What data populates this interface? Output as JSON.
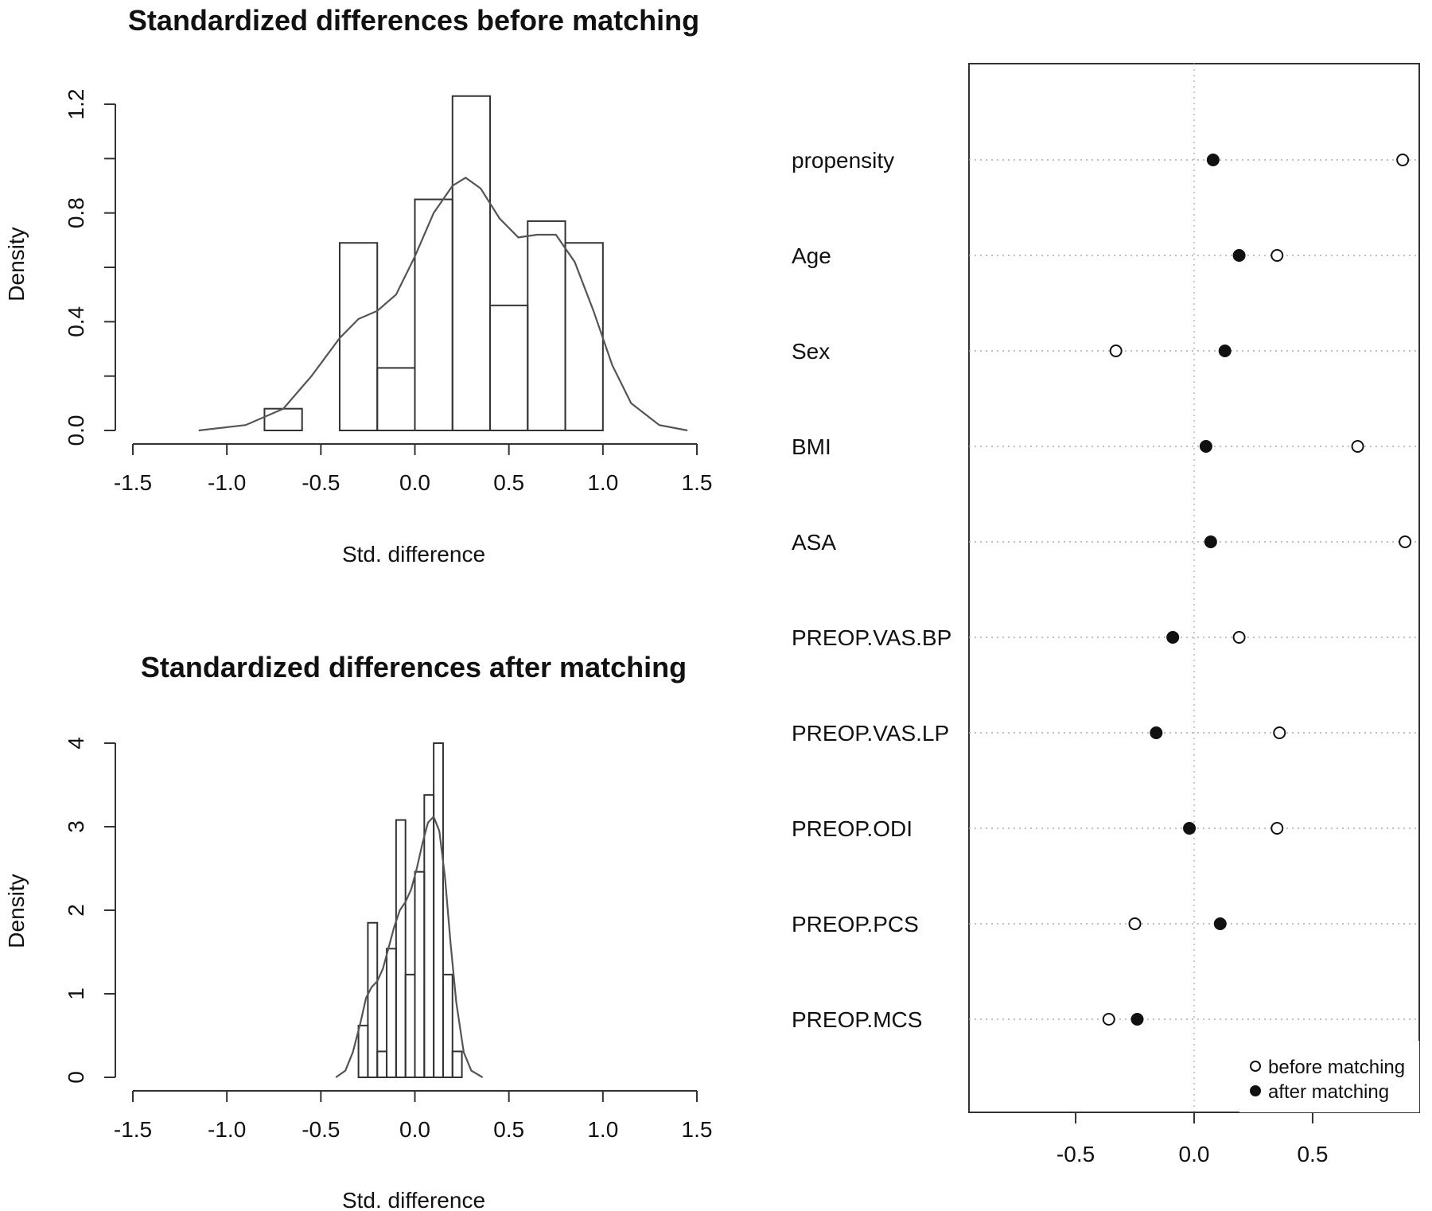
{
  "chart_data": [
    {
      "type": "histogram",
      "title": "Standardized differences before matching",
      "xlabel": "Std. difference",
      "ylabel": "Density",
      "xlim": [
        -1.5,
        1.5
      ],
      "xticks": [
        -1.5,
        -1.0,
        -0.5,
        0.0,
        0.5,
        1.0,
        1.5
      ],
      "xtick_labels": [
        "-1.5",
        "-1.0",
        "-0.5",
        "0.0",
        "0.5",
        "1.0",
        "1.5"
      ],
      "ylim": [
        0,
        1.2
      ],
      "yticks": [
        0.0,
        0.2,
        0.4,
        0.6,
        0.8,
        1.0,
        1.2
      ],
      "ytick_labels": [
        "0.0",
        "",
        "0.4",
        "",
        "0.8",
        "",
        "1.2"
      ],
      "bins": [
        {
          "from": -0.8,
          "to": -0.6,
          "density": 0.08
        },
        {
          "from": -0.6,
          "to": -0.4,
          "density": 0.0
        },
        {
          "from": -0.4,
          "to": -0.2,
          "density": 0.69
        },
        {
          "from": -0.2,
          "to": 0.0,
          "density": 0.23
        },
        {
          "from": 0.0,
          "to": 0.2,
          "density": 0.85
        },
        {
          "from": 0.2,
          "to": 0.4,
          "density": 1.23
        },
        {
          "from": 0.4,
          "to": 0.6,
          "density": 0.46
        },
        {
          "from": 0.6,
          "to": 0.8,
          "density": 0.77
        },
        {
          "from": 0.8,
          "to": 1.0,
          "density": 0.69
        }
      ],
      "density_curve": {
        "x": [
          -1.15,
          -0.9,
          -0.7,
          -0.55,
          -0.4,
          -0.3,
          -0.2,
          -0.1,
          0.0,
          0.1,
          0.2,
          0.27,
          0.35,
          0.45,
          0.55,
          0.65,
          0.75,
          0.85,
          0.95,
          1.05,
          1.15,
          1.3,
          1.45
        ],
        "y": [
          0.0,
          0.02,
          0.08,
          0.2,
          0.34,
          0.41,
          0.44,
          0.5,
          0.64,
          0.8,
          0.9,
          0.93,
          0.89,
          0.78,
          0.71,
          0.72,
          0.72,
          0.62,
          0.44,
          0.24,
          0.1,
          0.02,
          0.0
        ]
      }
    },
    {
      "type": "histogram",
      "title": "Standardized differences after matching",
      "xlabel": "Std. difference",
      "ylabel": "Density",
      "xlim": [
        -1.5,
        1.5
      ],
      "xticks": [
        -1.5,
        -1.0,
        -0.5,
        0.0,
        0.5,
        1.0,
        1.5
      ],
      "xtick_labels": [
        "-1.5",
        "-1.0",
        "-0.5",
        "0.0",
        "0.5",
        "1.0",
        "1.5"
      ],
      "ylim": [
        0,
        4
      ],
      "yticks": [
        0,
        1,
        2,
        3,
        4
      ],
      "ytick_labels": [
        "0",
        "1",
        "2",
        "3",
        "4"
      ],
      "bins": [
        {
          "from": -0.3,
          "to": -0.25,
          "density": 0.62
        },
        {
          "from": -0.25,
          "to": -0.2,
          "density": 1.85
        },
        {
          "from": -0.2,
          "to": -0.15,
          "density": 0.31
        },
        {
          "from": -0.15,
          "to": -0.1,
          "density": 1.54
        },
        {
          "from": -0.1,
          "to": -0.05,
          "density": 3.08
        },
        {
          "from": -0.05,
          "to": 0.0,
          "density": 1.23
        },
        {
          "from": 0.0,
          "to": 0.05,
          "density": 2.46
        },
        {
          "from": 0.05,
          "to": 0.1,
          "density": 3.38
        },
        {
          "from": 0.1,
          "to": 0.15,
          "density": 4.0
        },
        {
          "from": 0.15,
          "to": 0.2,
          "density": 1.23
        },
        {
          "from": 0.2,
          "to": 0.25,
          "density": 0.31
        }
      ],
      "density_curve": {
        "x": [
          -0.42,
          -0.37,
          -0.33,
          -0.29,
          -0.26,
          -0.23,
          -0.2,
          -0.17,
          -0.14,
          -0.11,
          -0.08,
          -0.05,
          -0.02,
          0.01,
          0.04,
          0.07,
          0.1,
          0.13,
          0.16,
          0.19,
          0.22,
          0.26,
          0.3,
          0.36
        ],
        "y": [
          0.0,
          0.08,
          0.3,
          0.65,
          0.95,
          1.08,
          1.15,
          1.3,
          1.55,
          1.8,
          2.0,
          2.1,
          2.25,
          2.5,
          2.8,
          3.05,
          3.12,
          2.95,
          2.4,
          1.6,
          0.9,
          0.3,
          0.08,
          0.0
        ]
      }
    },
    {
      "type": "dotplot",
      "xlim": [
        -0.95,
        0.95
      ],
      "xticks": [
        -0.5,
        0.0,
        0.5
      ],
      "xtick_labels": [
        "-0.5",
        "0.0",
        "0.5"
      ],
      "variables": [
        "propensity",
        "Age",
        "Sex",
        "BMI",
        "ASA",
        "PREOP.VAS.BP",
        "PREOP.VAS.LP",
        "PREOP.ODI",
        "PREOP.PCS",
        "PREOP.MCS"
      ],
      "series": [
        {
          "name": "before matching",
          "marker": "open-circle",
          "values": [
            0.88,
            0.35,
            -0.33,
            0.69,
            0.89,
            0.19,
            0.36,
            0.35,
            -0.25,
            -0.36
          ]
        },
        {
          "name": "after matching",
          "marker": "filled-circle",
          "values": [
            0.08,
            0.19,
            0.13,
            0.05,
            0.07,
            -0.09,
            -0.16,
            -0.02,
            0.11,
            -0.24
          ]
        }
      ],
      "legend": {
        "position": "bottom-right",
        "labels": [
          "before matching",
          "after matching"
        ]
      }
    }
  ]
}
